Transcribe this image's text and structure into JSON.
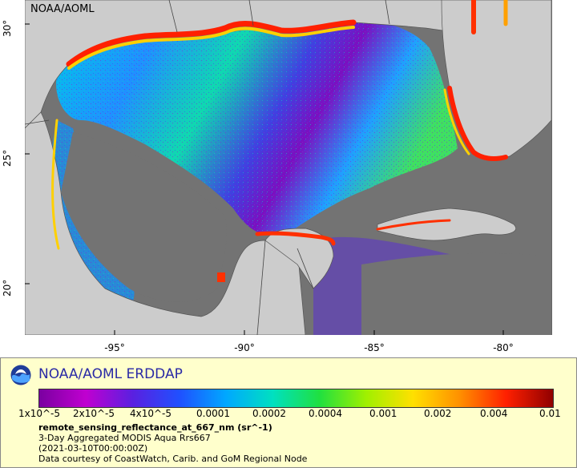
{
  "map": {
    "corner_label": "NOAA/AOML",
    "lat_labels": [
      "30°",
      "25°",
      "20°"
    ],
    "lon_labels": [
      "-95°",
      "-90°",
      "-85°",
      "-80°"
    ],
    "colors": {
      "land": "#cccccc",
      "nodata": "#737373",
      "border": "#555555"
    }
  },
  "legend": {
    "title": "NOAA/AOML ERDDAP",
    "colorbar_ticks": [
      "1x10^-5",
      "2x10^-5",
      "4x10^-5",
      "0.0001",
      "0.0002",
      "0.0004",
      "0.001",
      "0.002",
      "0.004",
      "0.01"
    ],
    "variable": "remote_sensing_reflectance_at_667_nm (sr^-1)",
    "dataset": "3-Day Aggregated MODIS Aqua Rrs667",
    "time": "(2021-03-10T00:00:00Z)",
    "courtesy": "Data courtesy of CoastWatch, Carib. and GoM Regional Node",
    "palette": [
      "#7a00a0",
      "#c000d0",
      "#5a20e0",
      "#2050ff",
      "#00a8ff",
      "#00e0c0",
      "#20e040",
      "#a0f000",
      "#ffe000",
      "#ff9000",
      "#ff2000",
      "#900000"
    ]
  }
}
